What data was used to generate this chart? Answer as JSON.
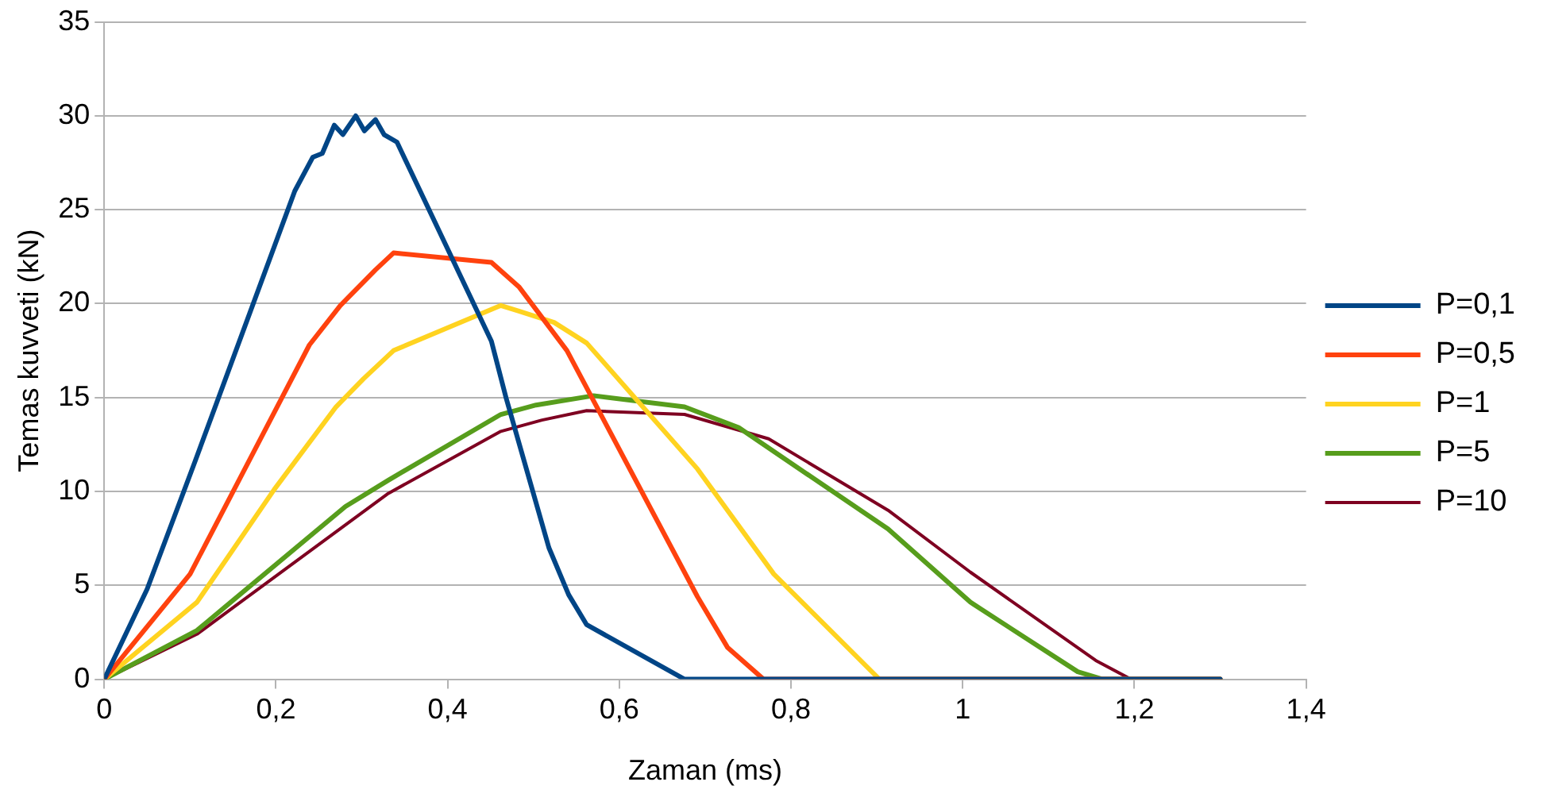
{
  "chart_data": {
    "type": "line",
    "xlabel": "Zaman (ms)",
    "ylabel": "Temas kuvveti (kN)",
    "xlim": [
      0,
      1.4
    ],
    "ylim": [
      0,
      35
    ],
    "xticks": [
      0,
      {
        "value": 0.2,
        "label": "0,2"
      },
      {
        "value": 0.4,
        "label": "0,4"
      },
      {
        "value": 0.6,
        "label": "0,6"
      },
      {
        "value": 0.8,
        "label": "0,8"
      },
      1,
      {
        "value": 1.2,
        "label": "1,2"
      },
      {
        "value": 1.4,
        "label": "1,4"
      }
    ],
    "yticks": [
      0,
      5,
      10,
      15,
      20,
      25,
      30,
      35
    ],
    "grid": "y",
    "legend": "right",
    "marker": "none",
    "line_style": "solid",
    "series": [
      {
        "name": "P=0,1",
        "color": "#004586",
        "x": [
          0,
          0.05,
          0.105,
          0.222,
          0.243,
          0.254,
          0.268,
          0.278,
          0.293,
          0.303,
          0.316,
          0.326,
          0.341,
          0.451,
          0.468,
          0.493,
          0.518,
          0.541,
          0.562,
          0.676,
          1.3
        ],
        "values": [
          0,
          4.8,
          11.5,
          26,
          27.8,
          28,
          29.5,
          29,
          30,
          29.2,
          29.8,
          29,
          28.6,
          18,
          15,
          11,
          7,
          4.5,
          2.9,
          0,
          0
        ]
      },
      {
        "name": "P=0,5",
        "color": "#ff420e",
        "x": [
          0,
          0.1,
          0.239,
          0.275,
          0.316,
          0.337,
          0.451,
          0.483,
          0.539,
          0.691,
          0.726,
          0.768,
          1.3
        ],
        "values": [
          0,
          5.6,
          17.8,
          19.9,
          21.8,
          22.7,
          22.2,
          20.9,
          17.5,
          4.4,
          1.7,
          0,
          0
        ]
      },
      {
        "name": "P=1",
        "color": "#ffd320",
        "x": [
          0,
          0.108,
          0.198,
          0.27,
          0.302,
          0.337,
          0.462,
          0.483,
          0.524,
          0.562,
          0.691,
          0.78,
          0.903,
          1.3
        ],
        "values": [
          0,
          4.1,
          10.1,
          14.5,
          16,
          17.5,
          19.9,
          19.6,
          19,
          17.9,
          11.2,
          5.6,
          0,
          0
        ]
      },
      {
        "name": "P=5",
        "color": "#579d1c",
        "x": [
          0,
          0.108,
          0.281,
          0.331,
          0.462,
          0.503,
          0.57,
          0.676,
          0.739,
          0.913,
          1.009,
          1.134,
          1.163,
          1.3
        ],
        "values": [
          0,
          2.6,
          9.2,
          10.6,
          14.1,
          14.6,
          15.1,
          14.5,
          13.4,
          8,
          4.1,
          0.4,
          0,
          0
        ]
      },
      {
        "name": "P=10",
        "color": "#7e0021",
        "x": [
          0,
          0.108,
          0.331,
          0.462,
          0.51,
          0.562,
          0.676,
          0.774,
          0.913,
          1.009,
          1.155,
          1.196,
          1.3
        ],
        "values": [
          0,
          2.4,
          9.9,
          13.2,
          13.8,
          14.3,
          14.1,
          12.8,
          9,
          5.7,
          1,
          0,
          0
        ]
      }
    ]
  }
}
